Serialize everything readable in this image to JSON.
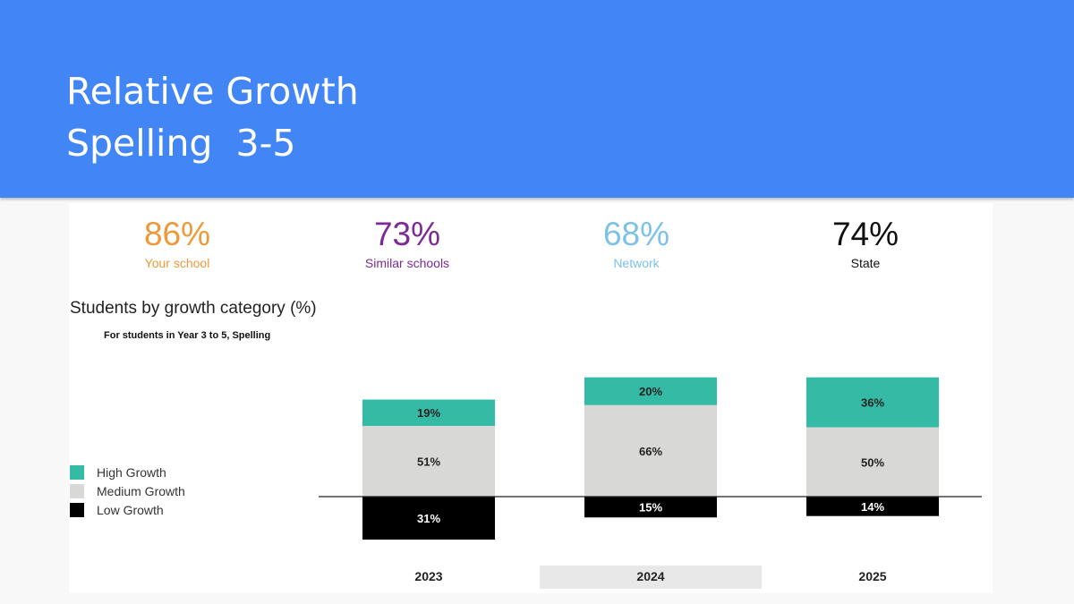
{
  "header": {
    "title_line1": "Relative Growth",
    "title_line2": "Spelling  3-5"
  },
  "stats": [
    {
      "value": "86%",
      "label": "Your school",
      "color": "#ec9a38"
    },
    {
      "value": "73%",
      "label": "Similar schools",
      "color": "#7b2a96"
    },
    {
      "value": "68%",
      "label": "Network",
      "color": "#7cc1e6"
    },
    {
      "value": "74%",
      "label": "State",
      "color": "#111111"
    }
  ],
  "chart_data": {
    "type": "bar",
    "stacked": true,
    "title": "Students by growth category (%)",
    "subtitle": "For students in Year 3 to 5, Spelling",
    "categories": [
      "2023",
      "2024",
      "2025"
    ],
    "highlighted_category": "2024",
    "series": [
      {
        "name": "High Growth",
        "color": "#35bba5",
        "values": [
          19,
          20,
          36
        ]
      },
      {
        "name": "Medium Growth",
        "color": "#d8d8d6",
        "values": [
          51,
          66,
          50
        ]
      },
      {
        "name": "Low Growth",
        "color": "#000000",
        "values": [
          31,
          15,
          14
        ],
        "below_axis": true
      }
    ],
    "legend_position": "left",
    "grid": false
  }
}
